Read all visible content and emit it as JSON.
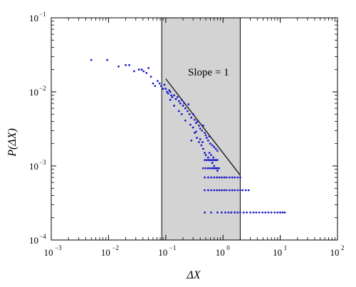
{
  "chart_data": {
    "type": "scatter",
    "xscale": "log",
    "yscale": "log",
    "xlim": [
      0.001,
      100
    ],
    "ylim": [
      0.0001,
      0.1
    ],
    "xlabel": "ΔX",
    "ylabel": "P(ΔX)",
    "x_ticks": [
      {
        "value": 0.001,
        "label": "10",
        "exp": "−3"
      },
      {
        "value": 0.01,
        "label": "10",
        "exp": "−2"
      },
      {
        "value": 0.1,
        "label": "10",
        "exp": "−1"
      },
      {
        "value": 1,
        "label": "10",
        "exp": "0"
      },
      {
        "value": 10,
        "label": "10",
        "exp": "1"
      },
      {
        "value": 100,
        "label": "10",
        "exp": "2"
      }
    ],
    "y_ticks": [
      {
        "value": 0.0001,
        "label": "10",
        "exp": "−4"
      },
      {
        "value": 0.001,
        "label": "10",
        "exp": "−3"
      },
      {
        "value": 0.01,
        "label": "10",
        "exp": "−2"
      },
      {
        "value": 0.1,
        "label": "10",
        "exp": "−1"
      }
    ],
    "shaded_region": {
      "x": [
        0.085,
        2.0
      ],
      "color": "#d3d3d3"
    },
    "fit_line": {
      "x": [
        0.1,
        2.0
      ],
      "y": [
        0.015,
        0.00075
      ],
      "label": "Slope = 1"
    },
    "series": [
      {
        "color": "#1a1acc",
        "points": [
          [
            0.005,
            0.027
          ],
          [
            0.0095,
            0.027
          ],
          [
            0.015,
            0.022
          ],
          [
            0.02,
            0.023
          ],
          [
            0.023,
            0.023
          ],
          [
            0.028,
            0.019
          ],
          [
            0.034,
            0.02
          ],
          [
            0.038,
            0.02
          ],
          [
            0.041,
            0.019
          ],
          [
            0.046,
            0.018
          ],
          [
            0.05,
            0.021
          ],
          [
            0.055,
            0.016
          ],
          [
            0.06,
            0.013
          ],
          [
            0.065,
            0.012
          ],
          [
            0.072,
            0.014
          ],
          [
            0.078,
            0.013
          ],
          [
            0.083,
            0.012
          ],
          [
            0.09,
            0.011
          ],
          [
            0.095,
            0.0125
          ],
          [
            0.1,
            0.011
          ],
          [
            0.105,
            0.01
          ],
          [
            0.11,
            0.0095
          ],
          [
            0.115,
            0.0105
          ],
          [
            0.12,
            0.01
          ],
          [
            0.125,
            0.009
          ],
          [
            0.13,
            0.0085
          ],
          [
            0.14,
            0.009
          ],
          [
            0.15,
            0.008
          ],
          [
            0.16,
            0.0085
          ],
          [
            0.17,
            0.0075
          ],
          [
            0.18,
            0.007
          ],
          [
            0.19,
            0.0078
          ],
          [
            0.2,
            0.0065
          ],
          [
            0.21,
            0.007
          ],
          [
            0.22,
            0.006
          ],
          [
            0.24,
            0.0055
          ],
          [
            0.25,
            0.0068
          ],
          [
            0.26,
            0.005
          ],
          [
            0.28,
            0.0045
          ],
          [
            0.3,
            0.005
          ],
          [
            0.32,
            0.0042
          ],
          [
            0.34,
            0.0038
          ],
          [
            0.36,
            0.004
          ],
          [
            0.38,
            0.0035
          ],
          [
            0.4,
            0.0032
          ],
          [
            0.43,
            0.003
          ],
          [
            0.45,
            0.0035
          ],
          [
            0.48,
            0.0028
          ],
          [
            0.5,
            0.0026
          ],
          [
            0.52,
            0.0024
          ],
          [
            0.55,
            0.0022
          ],
          [
            0.58,
            0.0025
          ],
          [
            0.6,
            0.002
          ],
          [
            0.65,
            0.0019
          ],
          [
            0.7,
            0.0018
          ],
          [
            0.75,
            0.0017
          ],
          [
            0.8,
            0.0016
          ],
          [
            0.32,
            0.0028
          ],
          [
            0.35,
            0.0024
          ],
          [
            0.38,
            0.0021
          ],
          [
            0.42,
            0.0019
          ],
          [
            0.45,
            0.0017
          ],
          [
            0.48,
            0.0015
          ],
          [
            0.5,
            0.0014
          ],
          [
            0.55,
            0.0013
          ],
          [
            0.6,
            0.0012
          ],
          [
            0.65,
            0.0011
          ],
          [
            0.7,
            0.001
          ],
          [
            0.75,
            0.00093
          ],
          [
            0.8,
            0.00086
          ],
          [
            0.22,
            0.0041
          ],
          [
            0.27,
            0.0036
          ],
          [
            0.3,
            0.0033
          ],
          [
            0.34,
            0.0029
          ],
          [
            0.17,
            0.0055
          ],
          [
            0.19,
            0.005
          ],
          [
            0.14,
            0.0065
          ],
          [
            0.12,
            0.0078
          ],
          [
            0.28,
            0.0022
          ],
          [
            0.4,
            0.0023
          ],
          [
            0.44,
            0.0021
          ],
          [
            0.58,
            0.0015
          ],
          [
            0.62,
            0.0014
          ],
          [
            0.68,
            0.0013
          ],
          [
            0.48,
            0.0012
          ],
          [
            0.52,
            0.0012
          ],
          [
            0.56,
            0.0012
          ],
          [
            0.6,
            0.0012
          ],
          [
            0.64,
            0.0012
          ],
          [
            0.68,
            0.0012
          ],
          [
            0.72,
            0.0012
          ],
          [
            0.76,
            0.0012
          ],
          [
            0.8,
            0.0012
          ],
          [
            0.45,
            0.00093
          ],
          [
            0.5,
            0.00093
          ],
          [
            0.55,
            0.00093
          ],
          [
            0.6,
            0.00093
          ],
          [
            0.65,
            0.00093
          ],
          [
            0.7,
            0.00093
          ],
          [
            0.75,
            0.00093
          ],
          [
            0.8,
            0.00093
          ],
          [
            0.85,
            0.00093
          ],
          [
            0.48,
            0.0007
          ],
          [
            0.55,
            0.0007
          ],
          [
            0.62,
            0.0007
          ],
          [
            0.7,
            0.0007
          ],
          [
            0.78,
            0.0007
          ],
          [
            0.86,
            0.0007
          ],
          [
            0.95,
            0.0007
          ],
          [
            1.05,
            0.0007
          ],
          [
            1.15,
            0.0007
          ],
          [
            1.3,
            0.0007
          ],
          [
            1.45,
            0.0007
          ],
          [
            1.6,
            0.0007
          ],
          [
            1.8,
            0.0007
          ],
          [
            2.0,
            0.0007
          ],
          [
            0.48,
            0.00047
          ],
          [
            0.55,
            0.00047
          ],
          [
            0.62,
            0.00047
          ],
          [
            0.7,
            0.00047
          ],
          [
            0.78,
            0.00047
          ],
          [
            0.86,
            0.00047
          ],
          [
            0.95,
            0.00047
          ],
          [
            1.05,
            0.00047
          ],
          [
            1.15,
            0.00047
          ],
          [
            1.3,
            0.00047
          ],
          [
            1.45,
            0.00047
          ],
          [
            1.6,
            0.00047
          ],
          [
            1.8,
            0.00047
          ],
          [
            2.0,
            0.00047
          ],
          [
            2.2,
            0.00047
          ],
          [
            2.5,
            0.00047
          ],
          [
            2.8,
            0.00047
          ],
          [
            0.48,
            0.000235
          ],
          [
            0.62,
            0.000235
          ],
          [
            0.8,
            0.000235
          ],
          [
            0.95,
            0.000235
          ],
          [
            1.1,
            0.000235
          ],
          [
            1.25,
            0.000235
          ],
          [
            1.4,
            0.000235
          ],
          [
            1.6,
            0.000235
          ],
          [
            1.8,
            0.000235
          ],
          [
            2.0,
            0.000235
          ],
          [
            2.3,
            0.000235
          ],
          [
            2.6,
            0.000235
          ],
          [
            3.0,
            0.000235
          ],
          [
            3.4,
            0.000235
          ],
          [
            3.8,
            0.000235
          ],
          [
            4.3,
            0.000235
          ],
          [
            4.9,
            0.000235
          ],
          [
            5.5,
            0.000235
          ],
          [
            6.2,
            0.000235
          ],
          [
            7.0,
            0.000235
          ],
          [
            8.0,
            0.000235
          ],
          [
            9.0,
            0.000235
          ],
          [
            10.0,
            0.000235
          ],
          [
            11.0,
            0.000235
          ],
          [
            12.0,
            0.000235
          ]
        ]
      }
    ]
  }
}
